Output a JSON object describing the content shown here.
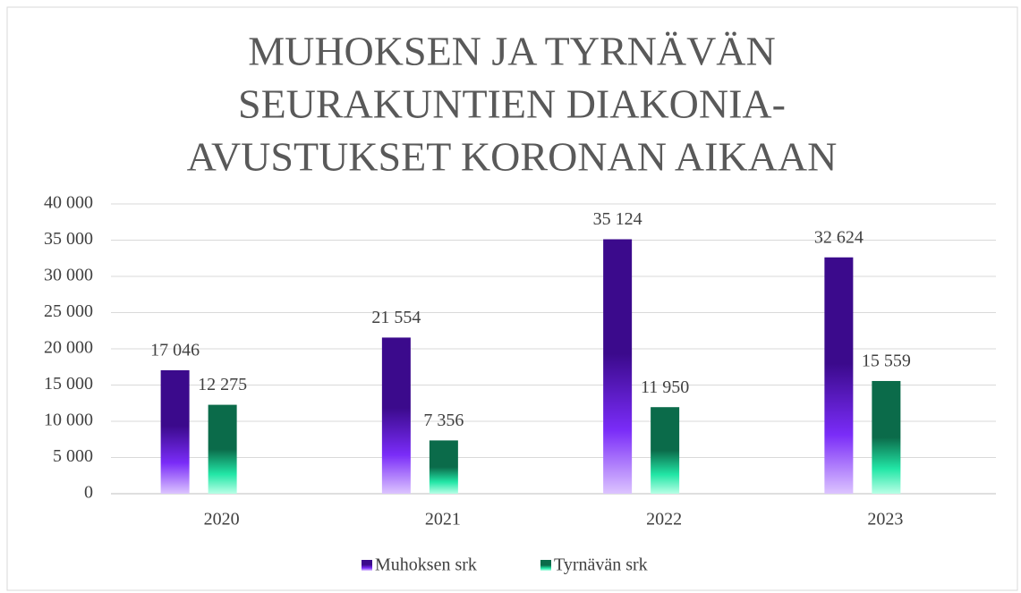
{
  "chart_data": {
    "type": "bar",
    "title": [
      "MUHOKSEN JA TYRNÄVÄN",
      "SEURAKUNTIEN DIAKONIA-",
      "AVUSTUKSET KORONAN AIKAAN"
    ],
    "categories": [
      "2020",
      "2021",
      "2022",
      "2023"
    ],
    "series": [
      {
        "name": "Muhoksen srk",
        "color": "#3b0a8c",
        "values": [
          17046,
          21554,
          35124,
          32624
        ],
        "value_labels": [
          "17 046",
          "21 554",
          "35 124",
          "32 624"
        ]
      },
      {
        "name": "Tyrnävän srk",
        "color": "#0b6b4a",
        "values": [
          12275,
          7356,
          11950,
          15559
        ],
        "value_labels": [
          "12 275",
          "7 356",
          "11 950",
          "15 559"
        ]
      }
    ],
    "ylim": [
      0,
      40000
    ],
    "yticks": [
      {
        "value": 0,
        "label": "0"
      },
      {
        "value": 5000,
        "label": "5 000"
      },
      {
        "value": 10000,
        "label": "10 000"
      },
      {
        "value": 15000,
        "label": "15 000"
      },
      {
        "value": 20000,
        "label": "20 000"
      },
      {
        "value": 25000,
        "label": "25 000"
      },
      {
        "value": 30000,
        "label": "30 000"
      },
      {
        "value": 35000,
        "label": "35 000"
      },
      {
        "value": 40000,
        "label": "40 000"
      }
    ],
    "grid": true,
    "legend": "bottom"
  }
}
